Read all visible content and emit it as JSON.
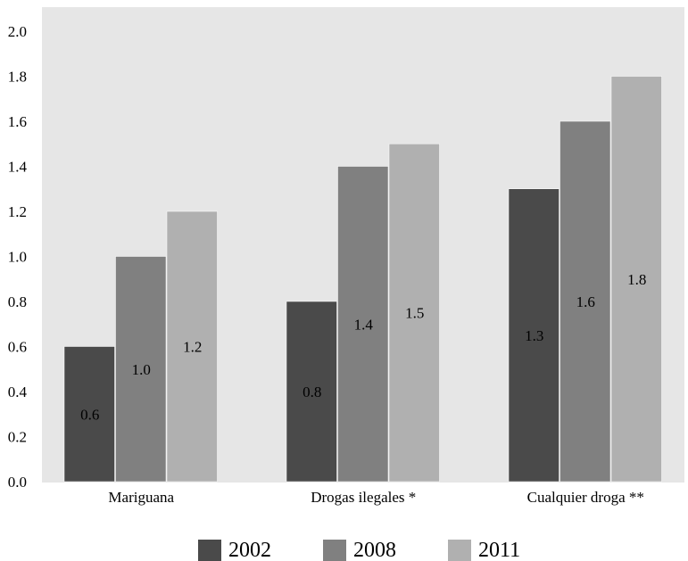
{
  "chart_data": {
    "type": "bar",
    "categories": [
      "Mariguana",
      "Drogas ilegales *",
      "Cualquier droga **"
    ],
    "series": [
      {
        "name": "2002",
        "values": [
          0.6,
          0.8,
          1.3
        ],
        "color": "#4a4a4a"
      },
      {
        "name": "2008",
        "values": [
          1.0,
          1.4,
          1.6
        ],
        "color": "#808080"
      },
      {
        "name": "2011",
        "values": [
          1.2,
          1.5,
          1.8
        ],
        "color": "#b0b0b0"
      }
    ],
    "data_labels": [
      [
        "0.6",
        "0.8",
        "1.3"
      ],
      [
        "1.0",
        "1.4",
        "1.6"
      ],
      [
        "1.2",
        "1.5",
        "1.8"
      ]
    ],
    "yticks": [
      "0.0",
      "0.2",
      "0.4",
      "0.6",
      "0.8",
      "1.0",
      "1.2",
      "1.4",
      "1.6",
      "1.8",
      "2.0"
    ],
    "ylim": [
      0,
      2.0
    ],
    "plot_background": "#e6e6e6",
    "grid": false,
    "legend_position": "bottom"
  }
}
